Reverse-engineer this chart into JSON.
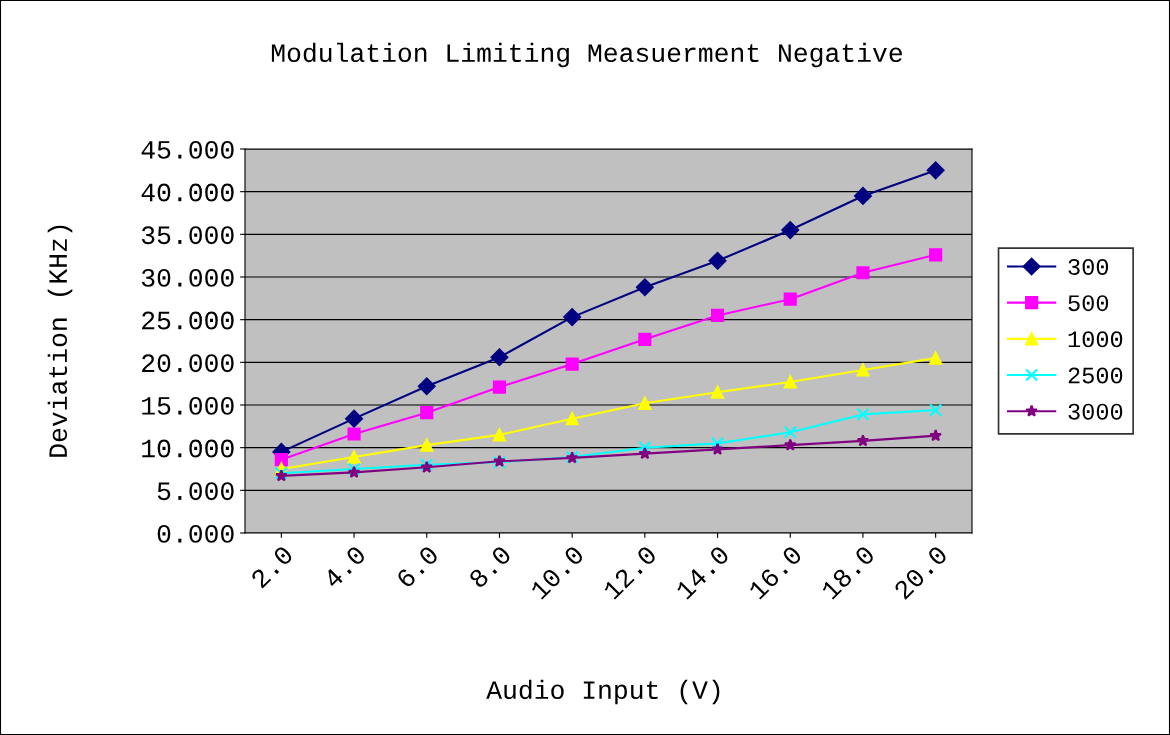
{
  "chart_data": {
    "type": "line",
    "title": "Modulation Limiting Measuerment Negative",
    "xlabel": "Audio Input (V)",
    "ylabel": "Deviation (KHz)",
    "categories": [
      "2.0",
      "4.0",
      "6.0",
      "8.0",
      "10.0",
      "12.0",
      "14.0",
      "16.0",
      "18.0",
      "20.0"
    ],
    "series": [
      {
        "name": "300",
        "color": "#000080",
        "marker": "diamond",
        "values": [
          9.5,
          13.4,
          17.2,
          20.6,
          25.3,
          28.8,
          31.9,
          35.5,
          39.5,
          42.5
        ]
      },
      {
        "name": "500",
        "color": "#ff00ff",
        "marker": "square",
        "values": [
          8.6,
          11.6,
          14.1,
          17.1,
          19.8,
          22.7,
          25.5,
          27.4,
          30.5,
          32.6
        ]
      },
      {
        "name": "1000",
        "color": "#ffff00",
        "marker": "triangle",
        "values": [
          7.5,
          8.9,
          10.3,
          11.5,
          13.4,
          15.2,
          16.5,
          17.7,
          19.1,
          20.5
        ]
      },
      {
        "name": "2500",
        "color": "#00ffff",
        "marker": "cross",
        "values": [
          7.0,
          7.5,
          8.0,
          8.3,
          8.9,
          10.0,
          10.5,
          11.8,
          13.9,
          14.4
        ]
      },
      {
        "name": "3000",
        "color": "#800080",
        "marker": "star",
        "values": [
          6.7,
          7.1,
          7.7,
          8.4,
          8.8,
          9.3,
          9.8,
          10.3,
          10.8,
          11.4
        ]
      }
    ],
    "ylim": [
      0,
      45
    ],
    "yticks": [
      {
        "value": 0,
        "label": "0.000"
      },
      {
        "value": 5,
        "label": "5.000"
      },
      {
        "value": 10,
        "label": "10.000"
      },
      {
        "value": 15,
        "label": "15.000"
      },
      {
        "value": 20,
        "label": "20.000"
      },
      {
        "value": 25,
        "label": "25.000"
      },
      {
        "value": 30,
        "label": "30.000"
      },
      {
        "value": 35,
        "label": "35.000"
      },
      {
        "value": 40,
        "label": "40.000"
      },
      {
        "value": 45,
        "label": "45.000"
      }
    ],
    "grid": "y",
    "legend": "right",
    "line_style": "solid"
  }
}
